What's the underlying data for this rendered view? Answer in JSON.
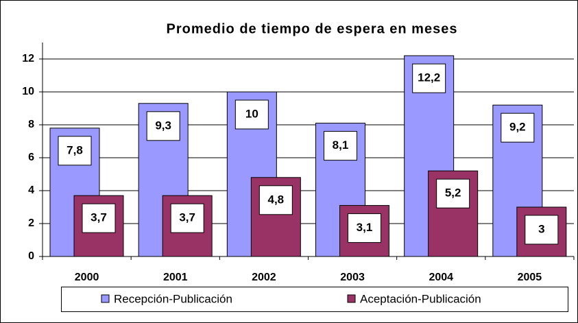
{
  "chart_data": {
    "type": "bar",
    "title": "Promedio de tiempo de espera en meses",
    "categories": [
      "2000",
      "2001",
      "2002",
      "2003",
      "2004",
      "2005"
    ],
    "series": [
      {
        "name": "Recepción-Publicación",
        "color": "#9999ff",
        "values": [
          7.8,
          9.3,
          10,
          8.1,
          12.2,
          9.2
        ],
        "value_labels": [
          "7,8",
          "9,3",
          "10",
          "8,1",
          "12,2",
          "9,2"
        ]
      },
      {
        "name": "Aceptación-Publicación",
        "color": "#993366",
        "values": [
          3.7,
          3.7,
          4.8,
          3.1,
          5.2,
          3
        ],
        "value_labels": [
          "3,7",
          "3,7",
          "4,8",
          "3,1",
          "5,2",
          "3"
        ]
      }
    ],
    "ylim": [
      0,
      13
    ],
    "yticks": [
      0,
      2,
      4,
      6,
      8,
      10,
      12
    ],
    "grid": true,
    "legend": "bottom"
  }
}
